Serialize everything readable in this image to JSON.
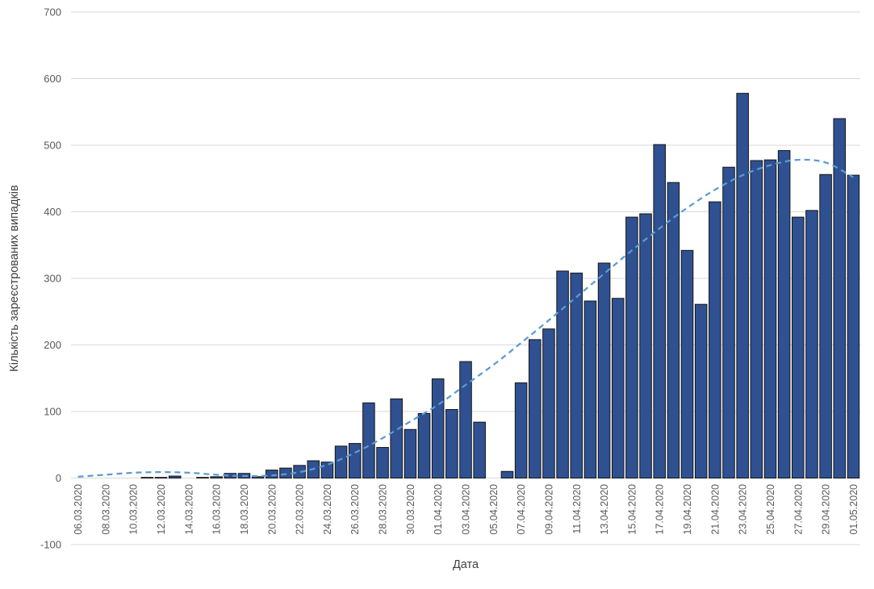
{
  "chart_data": {
    "type": "bar",
    "title": "",
    "xlabel": "Дата",
    "ylabel": "Кількість зареєстрованих випадків",
    "ylim": [
      -100,
      700
    ],
    "y_ticks": [
      -100,
      0,
      100,
      200,
      300,
      400,
      500,
      600,
      700
    ],
    "x_tick_step": 2,
    "grid": true,
    "legend": "none",
    "categories": [
      "06.03.2020",
      "07.03.2020",
      "08.03.2020",
      "09.03.2020",
      "10.03.2020",
      "11.03.2020",
      "12.03.2020",
      "13.03.2020",
      "14.03.2020",
      "15.03.2020",
      "16.03.2020",
      "17.03.2020",
      "18.03.2020",
      "19.03.2020",
      "20.03.2020",
      "21.03.2020",
      "22.03.2020",
      "23.03.2020",
      "24.03.2020",
      "25.03.2020",
      "26.03.2020",
      "27.03.2020",
      "28.03.2020",
      "29.03.2020",
      "30.03.2020",
      "31.03.2020",
      "01.04.2020",
      "02.04.2020",
      "03.04.2020",
      "04.04.2020",
      "05.04.2020",
      "06.04.2020",
      "07.04.2020",
      "08.04.2020",
      "09.04.2020",
      "10.04.2020",
      "11.04.2020",
      "12.04.2020",
      "13.04.2020",
      "14.04.2020",
      "15.04.2020",
      "16.04.2020",
      "17.04.2020",
      "18.04.2020",
      "19.04.2020",
      "20.04.2020",
      "21.04.2020",
      "22.04.2020",
      "23.04.2020",
      "24.04.2020",
      "25.04.2020",
      "26.04.2020",
      "27.04.2020",
      "28.04.2020",
      "29.04.2020",
      "30.04.2020",
      "01.05.2020"
    ],
    "values": [
      0,
      0,
      0,
      0,
      0,
      1,
      1,
      3,
      0,
      1,
      2,
      7,
      7,
      2,
      12,
      15,
      19,
      26,
      24,
      48,
      52,
      113,
      46,
      119,
      73,
      97,
      149,
      103,
      175,
      84,
      0,
      10,
      143,
      208,
      224,
      311,
      308,
      266,
      323,
      270,
      392,
      397,
      501,
      444,
      342,
      261,
      415,
      467,
      578,
      477,
      478,
      492,
      392,
      402,
      456,
      540,
      455
    ],
    "trend": {
      "name": "smoothed-trendline",
      "style": "dashed",
      "points": [
        [
          0,
          2
        ],
        [
          2,
          5
        ],
        [
          4,
          8
        ],
        [
          6,
          9
        ],
        [
          8,
          8
        ],
        [
          10,
          5
        ],
        [
          12,
          3
        ],
        [
          14,
          4
        ],
        [
          16,
          9
        ],
        [
          18,
          20
        ],
        [
          20,
          38
        ],
        [
          22,
          60
        ],
        [
          24,
          85
        ],
        [
          26,
          110
        ],
        [
          28,
          140
        ],
        [
          30,
          170
        ],
        [
          32,
          203
        ],
        [
          34,
          237
        ],
        [
          36,
          272
        ],
        [
          38,
          307
        ],
        [
          40,
          342
        ],
        [
          42,
          375
        ],
        [
          44,
          406
        ],
        [
          46,
          433
        ],
        [
          48,
          455
        ],
        [
          50,
          470
        ],
        [
          52,
          478
        ],
        [
          54,
          474
        ],
        [
          56,
          452
        ]
      ]
    },
    "colors": {
      "bar_fill": "#2f5191",
      "bar_stroke": "#161616",
      "trend": "#5b9bd5",
      "grid": "#d9d9d9",
      "axis_text": "#595959",
      "title_text": "#3f3f3f"
    }
  }
}
